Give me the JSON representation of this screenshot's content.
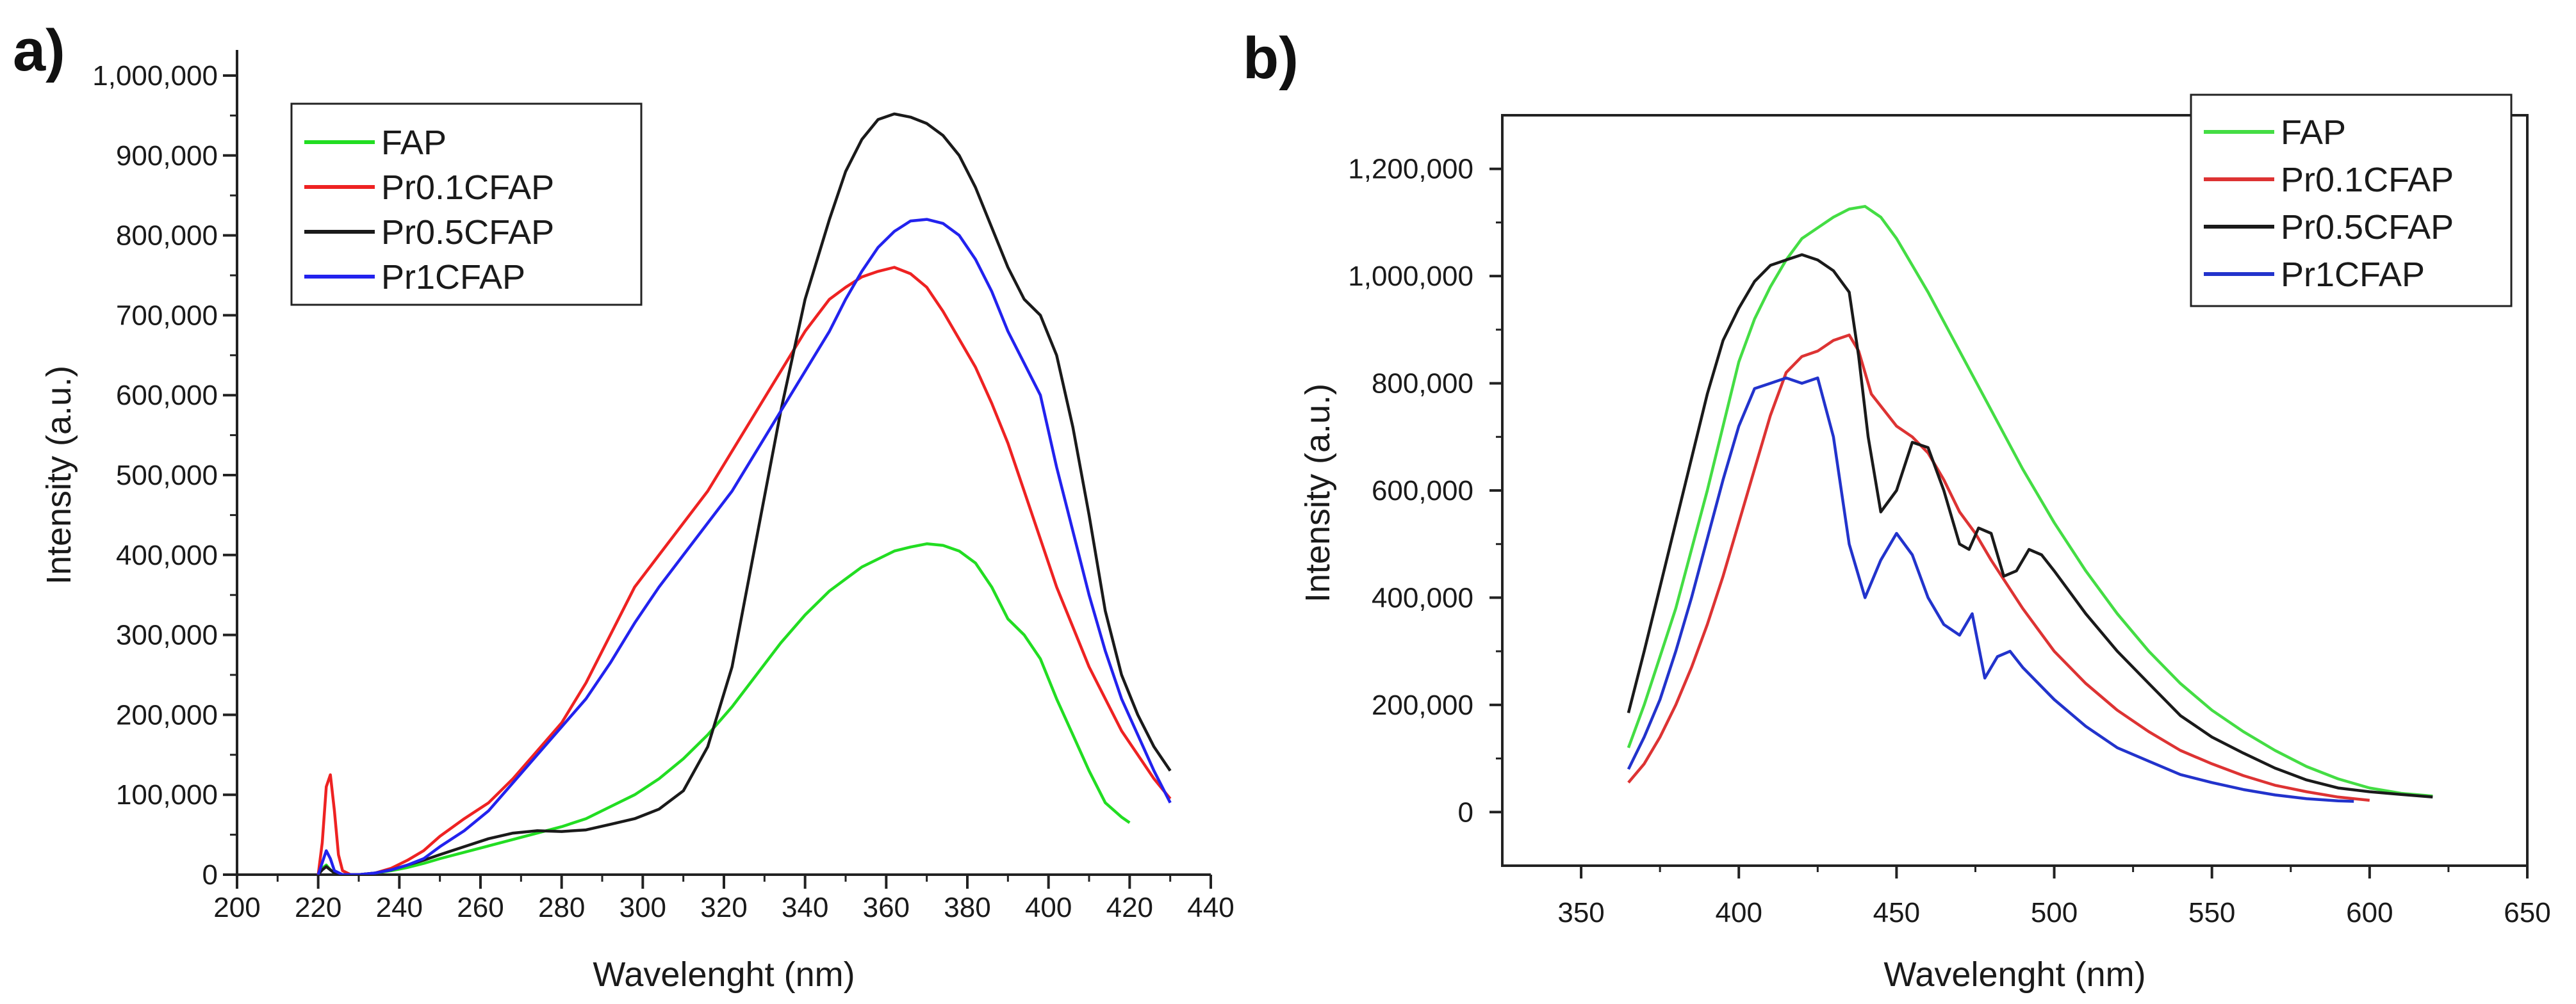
{
  "chart_data": [
    {
      "type": "line",
      "panel_label": "a)",
      "xlabel": "Wavelenght (nm)",
      "ylabel": "Intensity (a.u.)",
      "xlim": [
        200,
        440
      ],
      "ylim": [
        0,
        1000000
      ],
      "xticks": [
        200,
        220,
        240,
        260,
        280,
        300,
        320,
        340,
        360,
        380,
        400,
        420,
        440
      ],
      "xtick_labels": [
        "200",
        "220",
        "240",
        "260",
        "280",
        "300",
        "320",
        "340",
        "360",
        "380",
        "400",
        "420",
        "440"
      ],
      "yticks": [
        0,
        100000,
        200000,
        300000,
        400000,
        500000,
        600000,
        700000,
        800000,
        900000,
        1000000
      ],
      "ytick_labels": [
        "0",
        "100,000",
        "200,000",
        "300,000",
        "400,000",
        "500,000",
        "600,000",
        "700,000",
        "800,000",
        "900,000",
        "1,000,000"
      ],
      "legend_position": "top-left",
      "series": [
        {
          "name": "FAP",
          "color": "#22dd22",
          "x": [
            220,
            221,
            222,
            223,
            224,
            226,
            228,
            230,
            234,
            238,
            242,
            246,
            250,
            256,
            262,
            268,
            274,
            280,
            286,
            292,
            298,
            304,
            310,
            316,
            322,
            328,
            334,
            340,
            346,
            350,
            354,
            358,
            362,
            366,
            370,
            374,
            378,
            382,
            386,
            390,
            394,
            398,
            402,
            406,
            410,
            414,
            418,
            420
          ],
          "y": [
            0,
            8000,
            12000,
            6000,
            2000,
            0,
            0,
            0,
            2000,
            5000,
            9000,
            14000,
            20000,
            28000,
            36000,
            44000,
            52000,
            60000,
            70000,
            85000,
            100000,
            120000,
            145000,
            175000,
            210000,
            250000,
            290000,
            325000,
            355000,
            370000,
            385000,
            395000,
            405000,
            410000,
            414000,
            412000,
            405000,
            390000,
            360000,
            320000,
            300000,
            270000,
            220000,
            175000,
            130000,
            90000,
            72000,
            65000
          ]
        },
        {
          "name": "Pr0.1CFAP",
          "color": "#ee2222",
          "x": [
            220,
            221,
            222,
            223,
            224,
            225,
            226,
            228,
            230,
            234,
            238,
            242,
            246,
            250,
            256,
            262,
            268,
            274,
            280,
            286,
            292,
            298,
            304,
            310,
            316,
            322,
            328,
            334,
            340,
            346,
            350,
            354,
            358,
            362,
            366,
            370,
            374,
            378,
            382,
            386,
            390,
            394,
            398,
            402,
            406,
            410,
            414,
            418,
            422,
            426,
            430
          ],
          "y": [
            0,
            40000,
            110000,
            125000,
            80000,
            25000,
            5000,
            0,
            0,
            2000,
            8000,
            18000,
            30000,
            48000,
            70000,
            90000,
            120000,
            155000,
            190000,
            240000,
            300000,
            360000,
            400000,
            440000,
            480000,
            530000,
            580000,
            630000,
            680000,
            720000,
            735000,
            748000,
            755000,
            760000,
            752000,
            735000,
            705000,
            670000,
            635000,
            590000,
            540000,
            480000,
            420000,
            360000,
            310000,
            260000,
            220000,
            180000,
            150000,
            120000,
            95000
          ]
        },
        {
          "name": "Pr0.5CFAP",
          "color": "#1a1a1a",
          "x": [
            220,
            221,
            222,
            223,
            224,
            226,
            228,
            230,
            234,
            238,
            242,
            246,
            250,
            256,
            262,
            268,
            274,
            280,
            286,
            292,
            298,
            304,
            310,
            316,
            322,
            328,
            334,
            340,
            346,
            350,
            354,
            358,
            362,
            366,
            370,
            374,
            378,
            382,
            386,
            390,
            394,
            398,
            402,
            406,
            410,
            414,
            418,
            422,
            426,
            430
          ],
          "y": [
            0,
            6000,
            10000,
            6000,
            2000,
            0,
            0,
            0,
            2000,
            6000,
            12000,
            18000,
            25000,
            35000,
            45000,
            52000,
            55000,
            54000,
            56000,
            63000,
            70000,
            82000,
            105000,
            160000,
            260000,
            420000,
            580000,
            720000,
            820000,
            880000,
            920000,
            945000,
            952000,
            948000,
            940000,
            925000,
            900000,
            860000,
            810000,
            760000,
            720000,
            700000,
            650000,
            560000,
            450000,
            330000,
            250000,
            200000,
            160000,
            130000
          ]
        },
        {
          "name": "Pr1CFAP",
          "color": "#2222ee",
          "x": [
            220,
            221,
            222,
            223,
            224,
            226,
            228,
            230,
            234,
            238,
            242,
            246,
            250,
            256,
            262,
            268,
            274,
            280,
            286,
            292,
            298,
            304,
            310,
            316,
            322,
            328,
            334,
            340,
            346,
            350,
            354,
            358,
            362,
            366,
            370,
            374,
            378,
            382,
            386,
            390,
            394,
            398,
            402,
            406,
            410,
            414,
            418,
            422,
            426,
            430
          ],
          "y": [
            0,
            15000,
            30000,
            20000,
            5000,
            0,
            0,
            0,
            2000,
            6000,
            12000,
            20000,
            35000,
            55000,
            80000,
            115000,
            150000,
            185000,
            220000,
            265000,
            315000,
            360000,
            400000,
            440000,
            480000,
            530000,
            580000,
            630000,
            680000,
            720000,
            755000,
            785000,
            805000,
            818000,
            820000,
            815000,
            800000,
            770000,
            730000,
            680000,
            640000,
            600000,
            510000,
            430000,
            350000,
            280000,
            220000,
            175000,
            130000,
            90000
          ]
        }
      ]
    },
    {
      "type": "line",
      "panel_label": "b)",
      "xlabel": "Wavelenght (nm)",
      "ylabel": "Intensity (a.u.)",
      "xlim": [
        325,
        650
      ],
      "ylim": [
        -100000,
        1300000
      ],
      "xticks": [
        350,
        400,
        450,
        500,
        550,
        600,
        650
      ],
      "xtick_labels": [
        "350",
        "400",
        "450",
        "500",
        "550",
        "600",
        "650"
      ],
      "yticks": [
        0,
        200000,
        400000,
        600000,
        800000,
        1000000,
        1200000
      ],
      "ytick_labels": [
        "0",
        "200,000",
        "400,000",
        "600,000",
        "800,000",
        "1,000,000",
        "1,200,000"
      ],
      "legend_position": "top-right",
      "series": [
        {
          "name": "FAP",
          "color": "#44dd44",
          "x": [
            365,
            370,
            375,
            380,
            385,
            390,
            395,
            400,
            405,
            410,
            415,
            420,
            425,
            430,
            435,
            440,
            445,
            450,
            455,
            460,
            470,
            480,
            490,
            500,
            510,
            520,
            530,
            540,
            550,
            560,
            570,
            580,
            590,
            600,
            610,
            620
          ],
          "y": [
            120000,
            200000,
            290000,
            380000,
            490000,
            600000,
            720000,
            840000,
            920000,
            980000,
            1030000,
            1070000,
            1090000,
            1110000,
            1125000,
            1130000,
            1110000,
            1070000,
            1020000,
            970000,
            860000,
            750000,
            640000,
            540000,
            450000,
            370000,
            300000,
            240000,
            190000,
            150000,
            115000,
            85000,
            62000,
            45000,
            35000,
            30000
          ]
        },
        {
          "name": "Pr0.1CFAP",
          "color": "#dd3333",
          "x": [
            365,
            370,
            375,
            380,
            385,
            390,
            395,
            400,
            405,
            410,
            415,
            420,
            425,
            430,
            435,
            438,
            442,
            446,
            450,
            455,
            460,
            465,
            470,
            475,
            480,
            490,
            500,
            510,
            520,
            530,
            540,
            550,
            560,
            570,
            580,
            590,
            600
          ],
          "y": [
            55000,
            90000,
            140000,
            200000,
            270000,
            350000,
            440000,
            540000,
            640000,
            740000,
            820000,
            850000,
            860000,
            880000,
            890000,
            860000,
            780000,
            750000,
            720000,
            700000,
            670000,
            620000,
            560000,
            520000,
            470000,
            380000,
            300000,
            240000,
            190000,
            150000,
            115000,
            90000,
            68000,
            50000,
            38000,
            28000,
            22000
          ]
        },
        {
          "name": "Pr0.5CFAP",
          "color": "#1a1a1a",
          "x": [
            365,
            370,
            375,
            380,
            385,
            390,
            395,
            400,
            405,
            410,
            415,
            420,
            425,
            430,
            435,
            438,
            441,
            445,
            450,
            455,
            460,
            465,
            470,
            473,
            476,
            480,
            484,
            488,
            492,
            496,
            500,
            510,
            520,
            530,
            540,
            550,
            560,
            570,
            580,
            590,
            600,
            610,
            620
          ],
          "y": [
            185000,
            300000,
            420000,
            540000,
            660000,
            780000,
            880000,
            940000,
            990000,
            1020000,
            1030000,
            1040000,
            1030000,
            1010000,
            970000,
            850000,
            700000,
            560000,
            600000,
            690000,
            680000,
            600000,
            500000,
            490000,
            530000,
            520000,
            440000,
            450000,
            490000,
            480000,
            450000,
            370000,
            300000,
            240000,
            180000,
            140000,
            110000,
            82000,
            60000,
            45000,
            38000,
            33000,
            28000
          ]
        },
        {
          "name": "Pr1CFAP",
          "color": "#2233cc",
          "x": [
            365,
            370,
            375,
            380,
            385,
            390,
            395,
            400,
            405,
            410,
            415,
            420,
            425,
            430,
            435,
            440,
            445,
            450,
            455,
            460,
            465,
            470,
            474,
            478,
            482,
            486,
            490,
            500,
            510,
            520,
            530,
            540,
            550,
            560,
            570,
            580,
            590,
            595
          ],
          "y": [
            80000,
            140000,
            210000,
            300000,
            400000,
            510000,
            620000,
            720000,
            790000,
            800000,
            810000,
            800000,
            810000,
            700000,
            500000,
            400000,
            470000,
            520000,
            480000,
            400000,
            350000,
            330000,
            370000,
            250000,
            290000,
            300000,
            270000,
            210000,
            160000,
            120000,
            95000,
            70000,
            55000,
            42000,
            32000,
            25000,
            21000,
            20000
          ]
        }
      ]
    }
  ]
}
